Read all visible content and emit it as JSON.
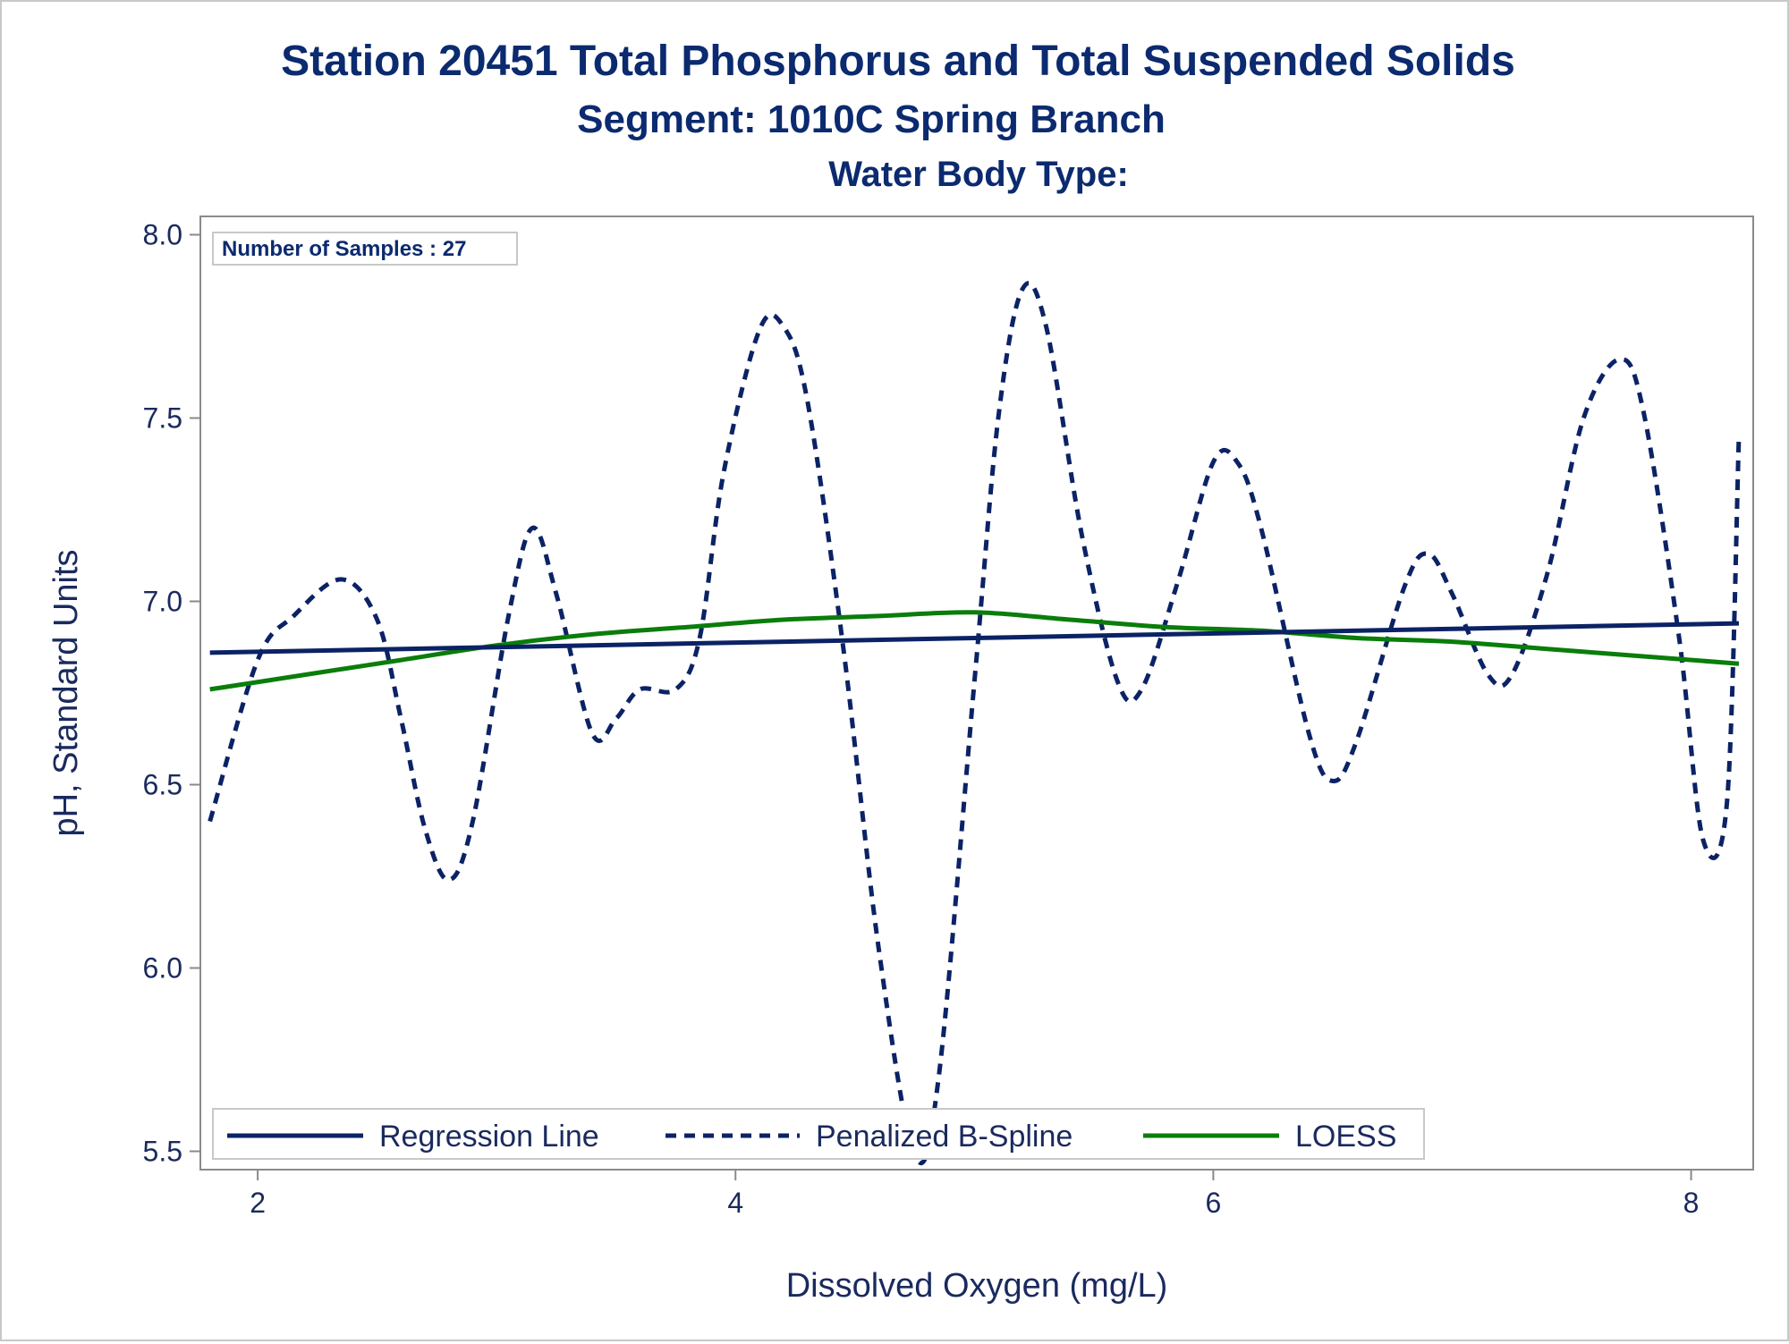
{
  "chart_data": {
    "type": "line",
    "title": "Station 20451  Total Phosphorus and Total Suspended Solids",
    "subtitle": "Segment: 1010C  Spring Branch",
    "subtitle2": "Water Body Type:",
    "xlabel": "Dissolved Oxygen (mg/L)",
    "ylabel": "pH, Standard Units",
    "xlim": [
      1.76,
      8.26
    ],
    "ylim": [
      5.45,
      8.05
    ],
    "x_ticks": [
      2,
      4,
      6,
      8
    ],
    "y_ticks": [
      "8.0",
      "7.5",
      "7.0",
      "6.5",
      "6.0",
      "5.5"
    ],
    "inset_label": "Number of Samples : 27",
    "legend_position": "bottom-left inside",
    "series": [
      {
        "name": "Regression Line",
        "style": "solid",
        "color": "#0b2265",
        "x": [
          1.8,
          8.2
        ],
        "y": [
          6.86,
          6.94
        ]
      },
      {
        "name": "Penalized B-Spline",
        "style": "dashed",
        "color": "#0b2265",
        "x": [
          1.8,
          2.0,
          2.15,
          2.35,
          2.5,
          2.6,
          2.7,
          2.8,
          2.9,
          3.05,
          3.15,
          3.25,
          3.4,
          3.5,
          3.6,
          3.75,
          3.85,
          3.95,
          4.1,
          4.2,
          4.3,
          4.45,
          4.6,
          4.75,
          4.85,
          5.0,
          5.1,
          5.2,
          5.3,
          5.45,
          5.6,
          5.7,
          5.85,
          6.0,
          6.1,
          6.2,
          6.4,
          6.5,
          6.6,
          6.8,
          6.9,
          7.0,
          7.15,
          7.25,
          7.4,
          7.55,
          7.7,
          7.8,
          7.95,
          8.05,
          8.15,
          8.2
        ],
        "y": [
          6.4,
          6.84,
          6.96,
          7.06,
          6.95,
          6.68,
          6.38,
          6.24,
          6.4,
          6.96,
          7.2,
          7.02,
          6.64,
          6.68,
          6.76,
          6.76,
          6.9,
          7.35,
          7.74,
          7.75,
          7.55,
          6.88,
          6.05,
          5.49,
          5.7,
          6.78,
          7.5,
          7.85,
          7.75,
          7.18,
          6.78,
          6.76,
          7.05,
          7.38,
          7.38,
          7.2,
          6.64,
          6.51,
          6.62,
          7.04,
          7.13,
          7.02,
          6.8,
          6.8,
          7.08,
          7.5,
          7.66,
          7.52,
          6.9,
          6.35,
          6.45,
          7.45
        ]
      },
      {
        "name": "LOESS",
        "style": "solid",
        "color": "#0a7d0a",
        "x": [
          1.8,
          2.2,
          2.6,
          3.0,
          3.4,
          3.8,
          4.2,
          4.6,
          5.0,
          5.4,
          5.8,
          6.2,
          6.6,
          7.0,
          7.4,
          7.8,
          8.2
        ],
        "y": [
          6.76,
          6.8,
          6.84,
          6.88,
          6.91,
          6.93,
          6.95,
          6.96,
          6.97,
          6.95,
          6.93,
          6.92,
          6.9,
          6.89,
          6.87,
          6.85,
          6.83
        ]
      }
    ]
  }
}
